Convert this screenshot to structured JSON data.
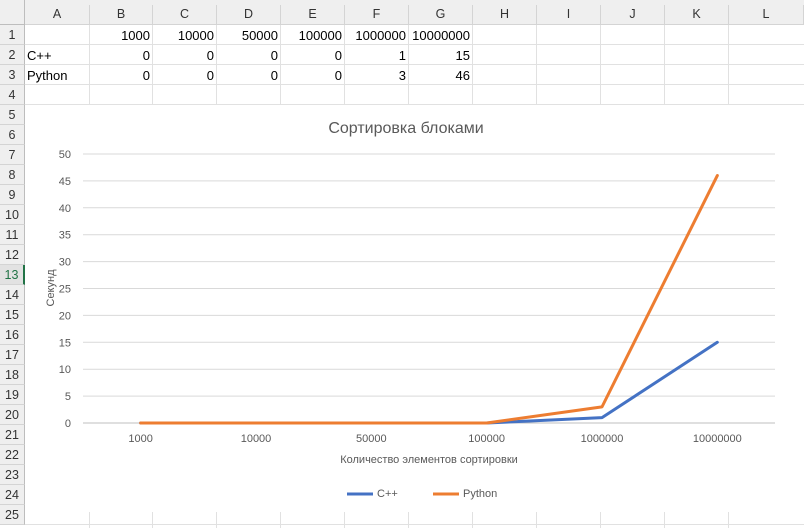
{
  "columns": [
    "A",
    "B",
    "C",
    "D",
    "E",
    "F",
    "G",
    "H",
    "I",
    "J",
    "K",
    "L"
  ],
  "rows": [
    "1",
    "2",
    "3",
    "4",
    "5",
    "6",
    "7",
    "8",
    "9",
    "10",
    "11",
    "12",
    "13",
    "14",
    "15",
    "16",
    "17",
    "18",
    "19",
    "20",
    "21",
    "22",
    "23",
    "24",
    "25"
  ],
  "selected_row": "13",
  "cells": {
    "header_row": [
      "",
      "1000",
      "10000",
      "50000",
      "100000",
      "1000000",
      "10000000"
    ],
    "rows": [
      [
        "C++",
        "0",
        "0",
        "0",
        "0",
        "1",
        "15"
      ],
      [
        "Python",
        "0",
        "0",
        "0",
        "0",
        "3",
        "46"
      ]
    ]
  },
  "chart_data": {
    "type": "line",
    "title": "Сортировка блоками",
    "xlabel": "Количество элементов сортировки",
    "ylabel": "Секунд",
    "categories": [
      "1000",
      "10000",
      "50000",
      "100000",
      "1000000",
      "10000000"
    ],
    "ylim": [
      0,
      50
    ],
    "yticks": [
      "0",
      "5",
      "10",
      "15",
      "20",
      "25",
      "30",
      "35",
      "40",
      "45",
      "50"
    ],
    "grid": true,
    "legend": "bottom",
    "series": [
      {
        "name": "C++",
        "values": [
          0,
          0,
          0,
          0,
          1,
          15
        ],
        "color": "#4472c4"
      },
      {
        "name": "Python",
        "values": [
          0,
          0,
          0,
          0,
          3,
          46
        ],
        "color": "#ed7d31"
      }
    ]
  }
}
